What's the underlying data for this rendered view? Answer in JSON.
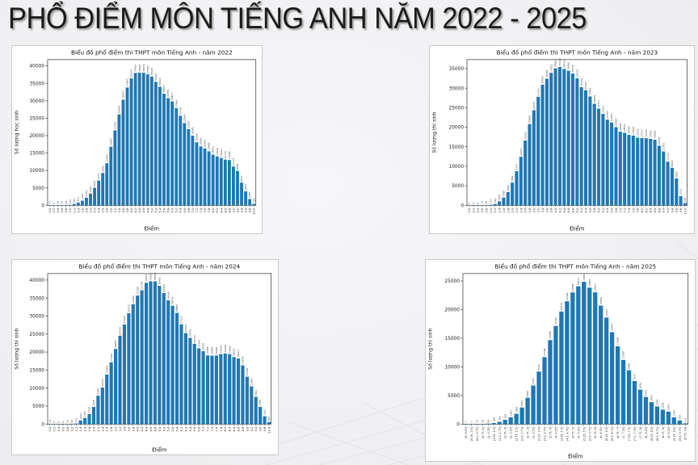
{
  "page": {
    "title": "PHỔ ĐIỂM MÔN TIẾNG ANH NĂM 2022 - 2025"
  },
  "colors": {
    "bar_fill": "#1f77b4",
    "page_bg": "#f1f1f3",
    "card_bg": "#ffffff",
    "card_border": "#c9c9cc",
    "axis_color": "#2b2b2b",
    "decor_line": "#e3e3e7"
  },
  "chart_data": [
    {
      "type": "bar",
      "title": "Biểu đồ phổ điểm thi THPT môn Tiếng Anh - năm 2022",
      "xlabel": "Điểm",
      "ylabel": "Số lượng học sinh",
      "ylim": [
        0,
        41800
      ],
      "yticks": [
        0,
        5000,
        10000,
        15000,
        20000,
        25000,
        30000,
        35000,
        40000
      ],
      "grid": false,
      "legend": null,
      "categories": [
        "0.0",
        "0.2",
        "0.4",
        "0.6",
        "0.8",
        "1.0",
        "1.2",
        "1.4",
        "1.6",
        "1.8",
        "2.0",
        "2.2",
        "2.4",
        "2.6",
        "2.8",
        "3.0",
        "3.2",
        "3.4",
        "3.6",
        "3.8",
        "4.0",
        "4.2",
        "4.4",
        "4.6",
        "4.8",
        "5.0",
        "5.2",
        "5.4",
        "5.6",
        "5.8",
        "6.0",
        "6.2",
        "6.4",
        "6.6",
        "6.8",
        "7.0",
        "7.2",
        "7.4",
        "7.6",
        "7.8",
        "8.0",
        "8.2",
        "8.4",
        "8.6",
        "8.8",
        "9.0",
        "9.2",
        "9.4",
        "9.6",
        "9.8",
        "10.0"
      ],
      "values": [
        17,
        9,
        10,
        25,
        62,
        112,
        375,
        771,
        1324,
        2182,
        3360,
        5023,
        7113,
        9282,
        12076,
        16805,
        21496,
        26098,
        30307,
        33807,
        36434,
        37963,
        38061,
        38030,
        37583,
        36948,
        35427,
        34016,
        32016,
        30759,
        29817,
        27862,
        25704,
        23594,
        21861,
        19982,
        18088,
        16905,
        16305,
        15488,
        14541,
        14046,
        13602,
        13115,
        12983,
        11115,
        9878,
        6511,
        4004,
        1804,
        425
      ]
    },
    {
      "type": "bar",
      "title": "Biểu đồ phổ điểm thi THPT môn Tiếng Anh - năm 2023",
      "xlabel": "Điểm",
      "ylabel": "Số lượng thí sinh",
      "ylim": [
        0,
        37300
      ],
      "yticks": [
        0,
        5000,
        10000,
        15000,
        20000,
        25000,
        30000,
        35000
      ],
      "grid": false,
      "legend": null,
      "categories": [
        "0.0",
        "0.2",
        "0.4",
        "0.6",
        "0.8",
        "1.0",
        "1.2",
        "1.4",
        "1.6",
        "1.8",
        "2.0",
        "2.2",
        "2.4",
        "2.6",
        "2.8",
        "3.0",
        "3.2",
        "3.4",
        "3.6",
        "3.8",
        "4.0",
        "4.2",
        "4.4",
        "4.6",
        "4.8",
        "5.0",
        "5.2",
        "5.4",
        "5.6",
        "5.8",
        "6.0",
        "6.2",
        "6.4",
        "6.6",
        "6.8",
        "7.0",
        "7.2",
        "7.4",
        "7.6",
        "7.8",
        "8.0",
        "8.2",
        "8.4",
        "8.6",
        "8.8",
        "9.0",
        "9.2",
        "9.4",
        "9.6",
        "9.8",
        "10.0"
      ],
      "values": [
        7,
        4,
        6,
        13,
        38,
        135,
        361,
        1012,
        1988,
        3402,
        5802,
        8734,
        12421,
        16603,
        20800,
        24343,
        27791,
        30885,
        32408,
        33923,
        35081,
        35419,
        34914,
        34466,
        33738,
        32520,
        30244,
        29445,
        27885,
        26002,
        24751,
        23411,
        21933,
        21206,
        20026,
        18847,
        18572,
        18025,
        17848,
        17318,
        17217,
        17182,
        17021,
        16808,
        15248,
        13792,
        11162,
        9620,
        6880,
        2332,
        555
      ]
    },
    {
      "type": "bar",
      "title": "Biểu đồ phổ điểm thi THPT môn Tiếng Anh - năm 2024",
      "xlabel": "Điểm",
      "ylabel": "Số lượng thí sinh",
      "ylim": [
        0,
        41800
      ],
      "yticks": [
        0,
        5000,
        10000,
        15000,
        20000,
        25000,
        30000,
        35000,
        40000
      ],
      "grid": false,
      "legend": null,
      "categories": [
        "0.0",
        "0.2",
        "0.4",
        "0.6",
        "0.8",
        "1.0",
        "1.2",
        "1.4",
        "1.6",
        "1.8",
        "2.0",
        "2.2",
        "2.4",
        "2.6",
        "2.8",
        "3.0",
        "3.2",
        "3.4",
        "3.6",
        "3.8",
        "4.0",
        "4.2",
        "4.4",
        "4.6",
        "4.8",
        "5.0",
        "5.2",
        "5.4",
        "5.6",
        "5.8",
        "6.0",
        "6.2",
        "6.4",
        "6.6",
        "6.8",
        "7.0",
        "7.2",
        "7.4",
        "7.6",
        "7.8",
        "8.0",
        "8.2",
        "8.4",
        "8.6",
        "8.8",
        "9.0",
        "9.2",
        "9.4",
        "9.6",
        "9.8",
        "10.0"
      ],
      "values": [
        14,
        5,
        2,
        6,
        31,
        92,
        172,
        1027,
        1701,
        2758,
        4758,
        7904,
        10147,
        13764,
        17182,
        20894,
        24559,
        27645,
        30775,
        33286,
        35708,
        37178,
        39237,
        39653,
        39628,
        38402,
        36402,
        34366,
        32876,
        30883,
        27717,
        25264,
        23936,
        22312,
        21043,
        20241,
        19085,
        19008,
        19026,
        19442,
        19608,
        19426,
        18613,
        18213,
        16298,
        13158,
        10487,
        7561,
        4785,
        2187,
        565
      ]
    },
    {
      "type": "bar",
      "title": "Biểu đồ phổ điểm thi THPT môn Tiếng Anh - năm 2025",
      "xlabel": "Điểm",
      "ylabel": "Số lượng thí sinh",
      "ylim": [
        0,
        26300
      ],
      "yticks": [
        0,
        5000,
        10000,
        15000,
        20000,
        25000
      ],
      "grid": false,
      "legend": null,
      "categories": [
        "(0, 0.25]",
        "(0.25, 0.5]",
        "(0.5, 0.75]",
        "(0.75, 1]",
        "(1, 1.25]",
        "(1.25, 1.5]",
        "(1.5, 1.75]",
        "(1.75, 2]",
        "(2, 2.25]",
        "(2.25, 2.5]",
        "(2.5, 2.75]",
        "(2.75, 3]",
        "(3, 3.25]",
        "(3.25, 3.5]",
        "(3.5, 3.75]",
        "(3.75, 4]",
        "(4, 4.25]",
        "(4.25, 4.5]",
        "(4.5, 4.75]",
        "(4.75, 5]",
        "(5, 5.25]",
        "(5.25, 5.5]",
        "(5.5, 5.75]",
        "(5.75, 6]",
        "(6, 6.25]",
        "(6.25, 6.5]",
        "(6.5, 6.75]",
        "(6.75, 7]",
        "(7, 7.25]",
        "(7.25, 7.5]",
        "(7.5, 7.75]",
        "(7.75, 8]",
        "(8, 8.25]",
        "(8.25, 8.5]",
        "(8.5, 8.75]",
        "(8.75, 9]",
        "(9, 9.25]",
        "(9.25, 9.5]",
        "(9.5, 9.75]",
        "(9.75, 10]"
      ],
      "values": [
        1,
        3,
        13,
        50,
        98,
        188,
        396,
        760,
        1183,
        1809,
        2905,
        4609,
        6753,
        9181,
        11708,
        14688,
        17146,
        19676,
        21462,
        23008,
        24071,
        24863,
        23842,
        23017,
        20706,
        18613,
        16063,
        13608,
        11208,
        9408,
        7527,
        6026,
        4743,
        3843,
        3083,
        2528,
        2184,
        1184,
        642,
        141
      ]
    }
  ]
}
